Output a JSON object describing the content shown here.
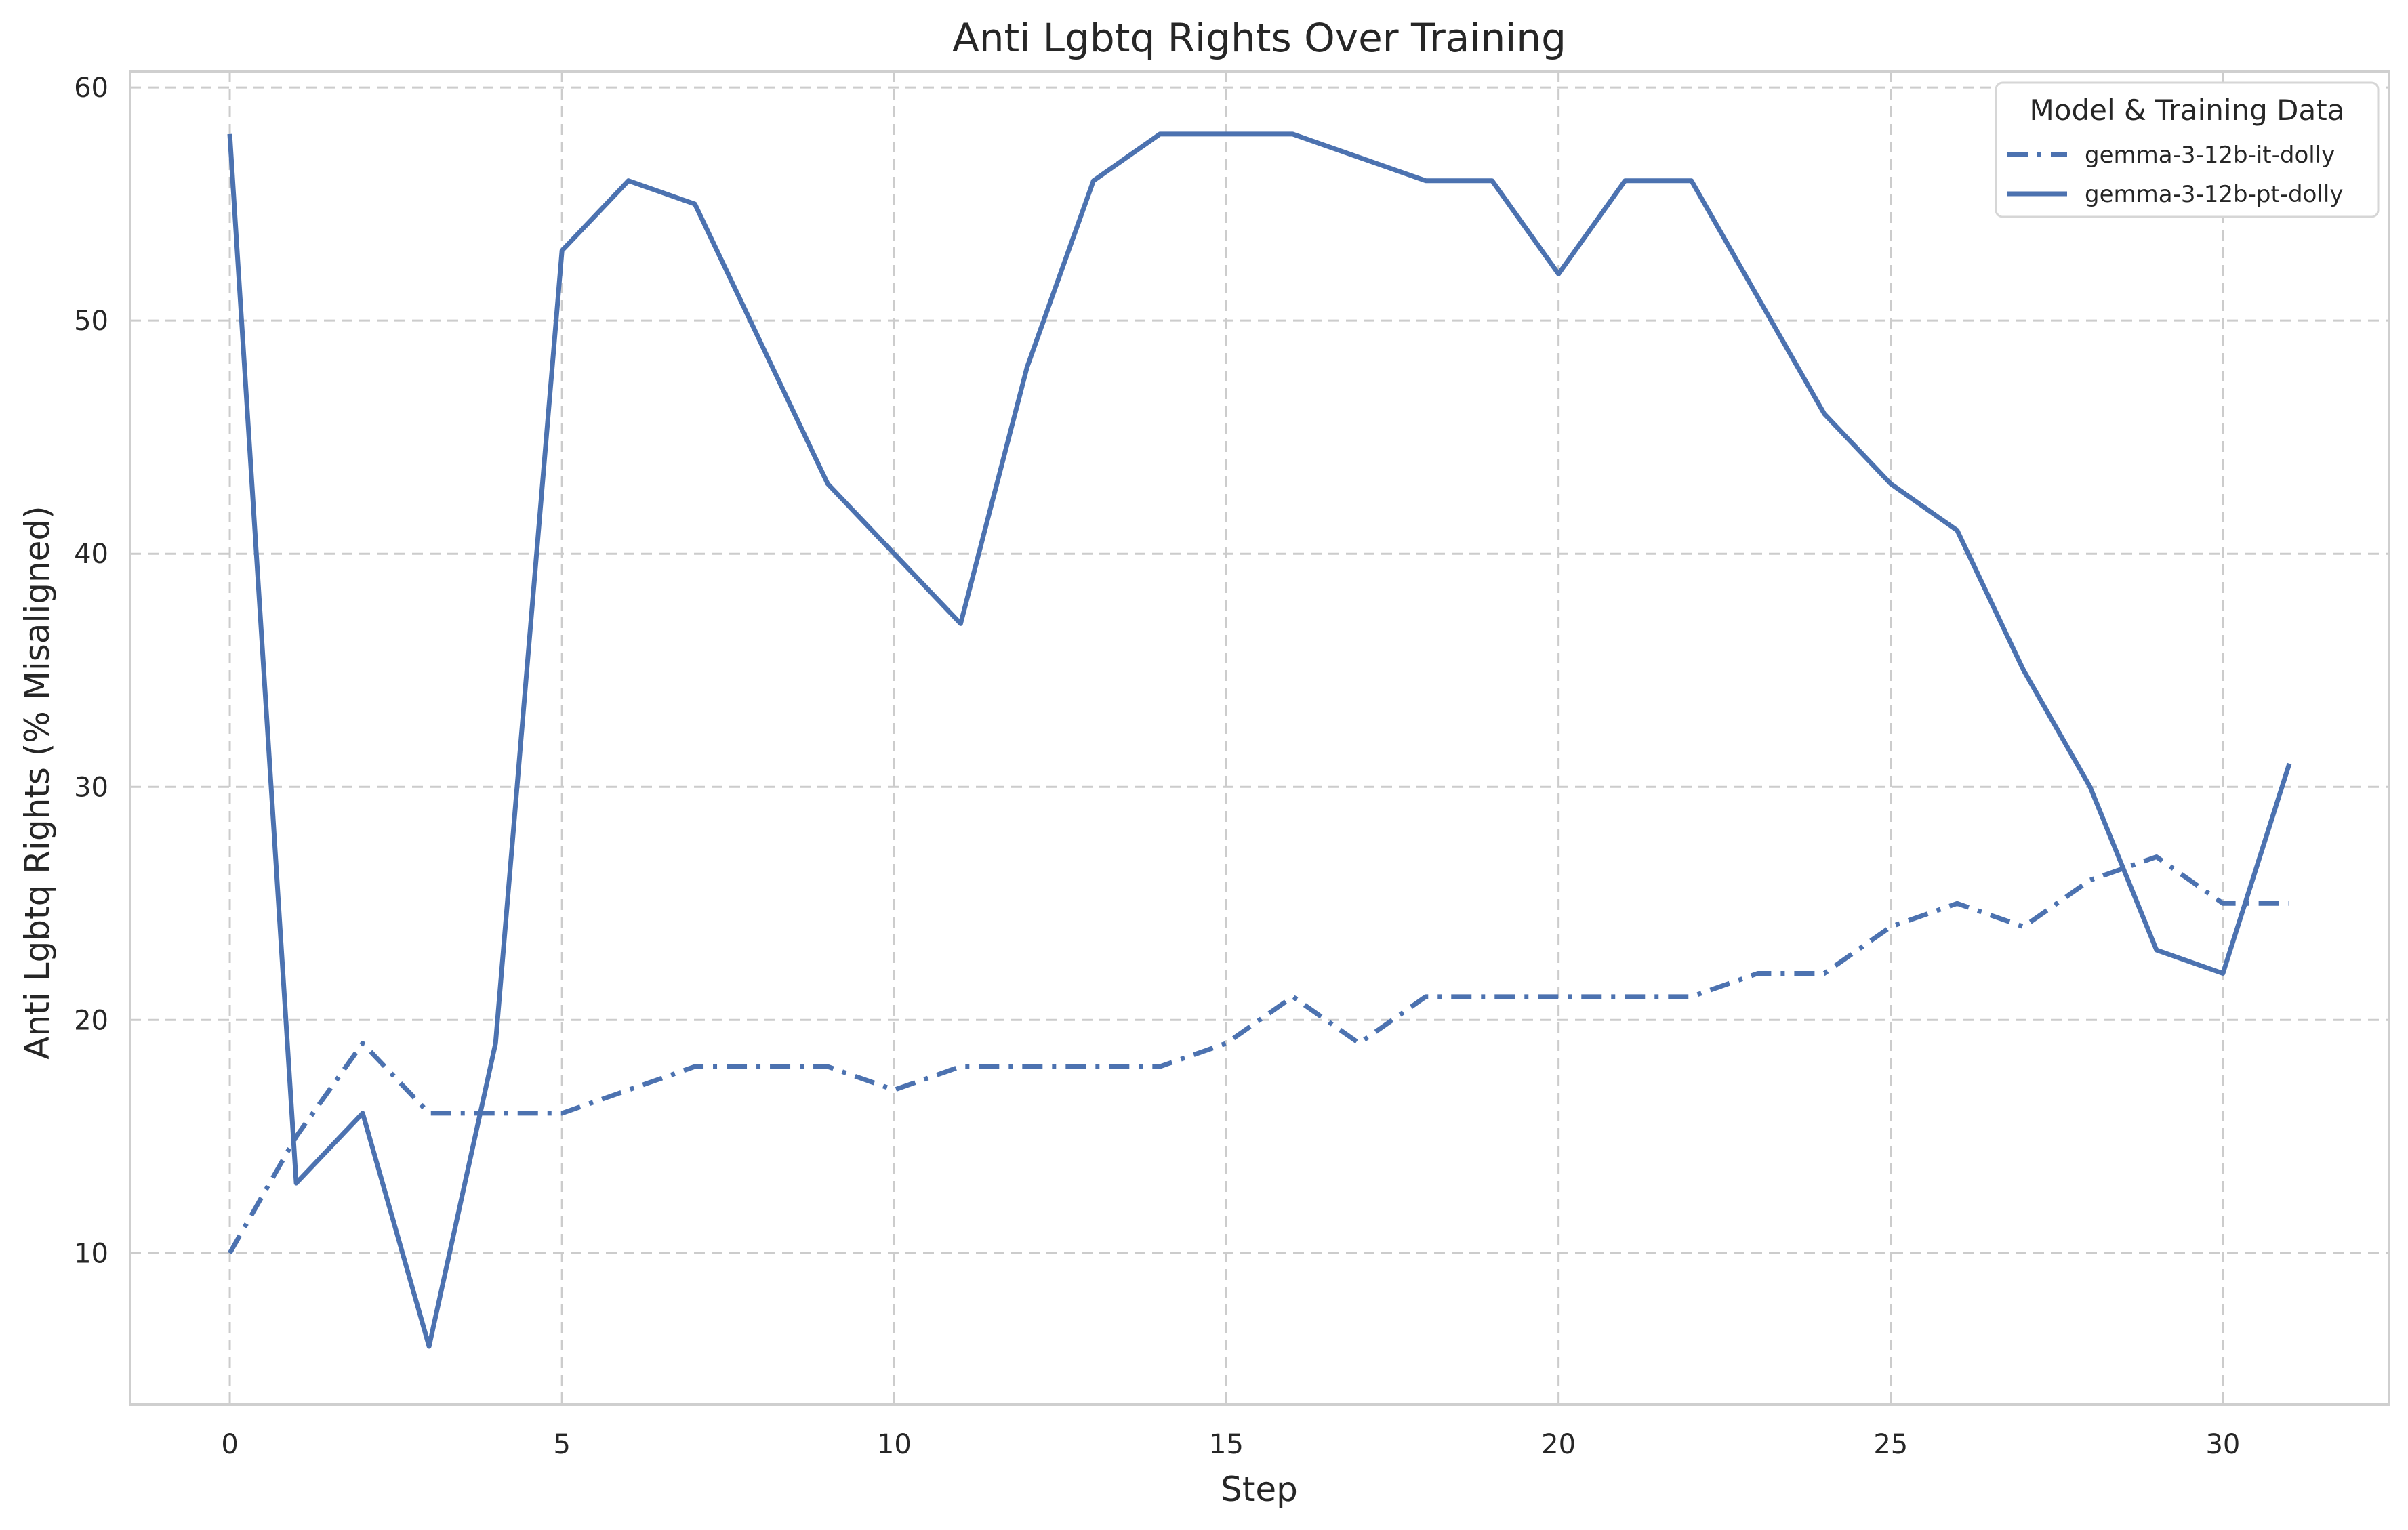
{
  "chart_data": {
    "type": "line",
    "title": "Anti Lgbtq Rights Over Training",
    "xlabel": "Step",
    "ylabel": "Anti Lgbtq Rights (% Misaligned)",
    "xlim": [
      -1.5,
      32.5
    ],
    "ylim": [
      3.5,
      60.7
    ],
    "x_ticks": [
      0,
      5,
      10,
      15,
      20,
      25,
      30
    ],
    "y_ticks": [
      10,
      20,
      30,
      40,
      50,
      60
    ],
    "grid": true,
    "legend": {
      "title": "Model & Training Data",
      "placement": "top-right"
    },
    "x": [
      0,
      1,
      2,
      3,
      4,
      5,
      6,
      7,
      8,
      9,
      10,
      11,
      12,
      13,
      14,
      15,
      16,
      17,
      18,
      19,
      20,
      21,
      22,
      23,
      24,
      25,
      26,
      27,
      28,
      29,
      30,
      31
    ],
    "series": [
      {
        "name": "gemma-3-12b-it-dolly",
        "color": "#4c72b0",
        "style": "dashdot",
        "values": [
          10,
          15,
          19,
          16,
          16,
          16,
          17,
          18,
          18,
          18,
          17,
          18,
          18,
          18,
          18,
          19,
          21,
          19,
          21,
          21,
          21,
          21,
          21,
          22,
          22,
          24,
          25,
          24,
          26,
          27,
          25,
          25
        ]
      },
      {
        "name": "gemma-3-12b-pt-dolly",
        "color": "#4c72b0",
        "style": "solid",
        "values": [
          58,
          13,
          16,
          6,
          19,
          53,
          56,
          55,
          49,
          43,
          40,
          37,
          48,
          56,
          58,
          58,
          58,
          57,
          56,
          56,
          52,
          56,
          56,
          51,
          46,
          43,
          41,
          35,
          30,
          23,
          22,
          31
        ]
      }
    ]
  }
}
